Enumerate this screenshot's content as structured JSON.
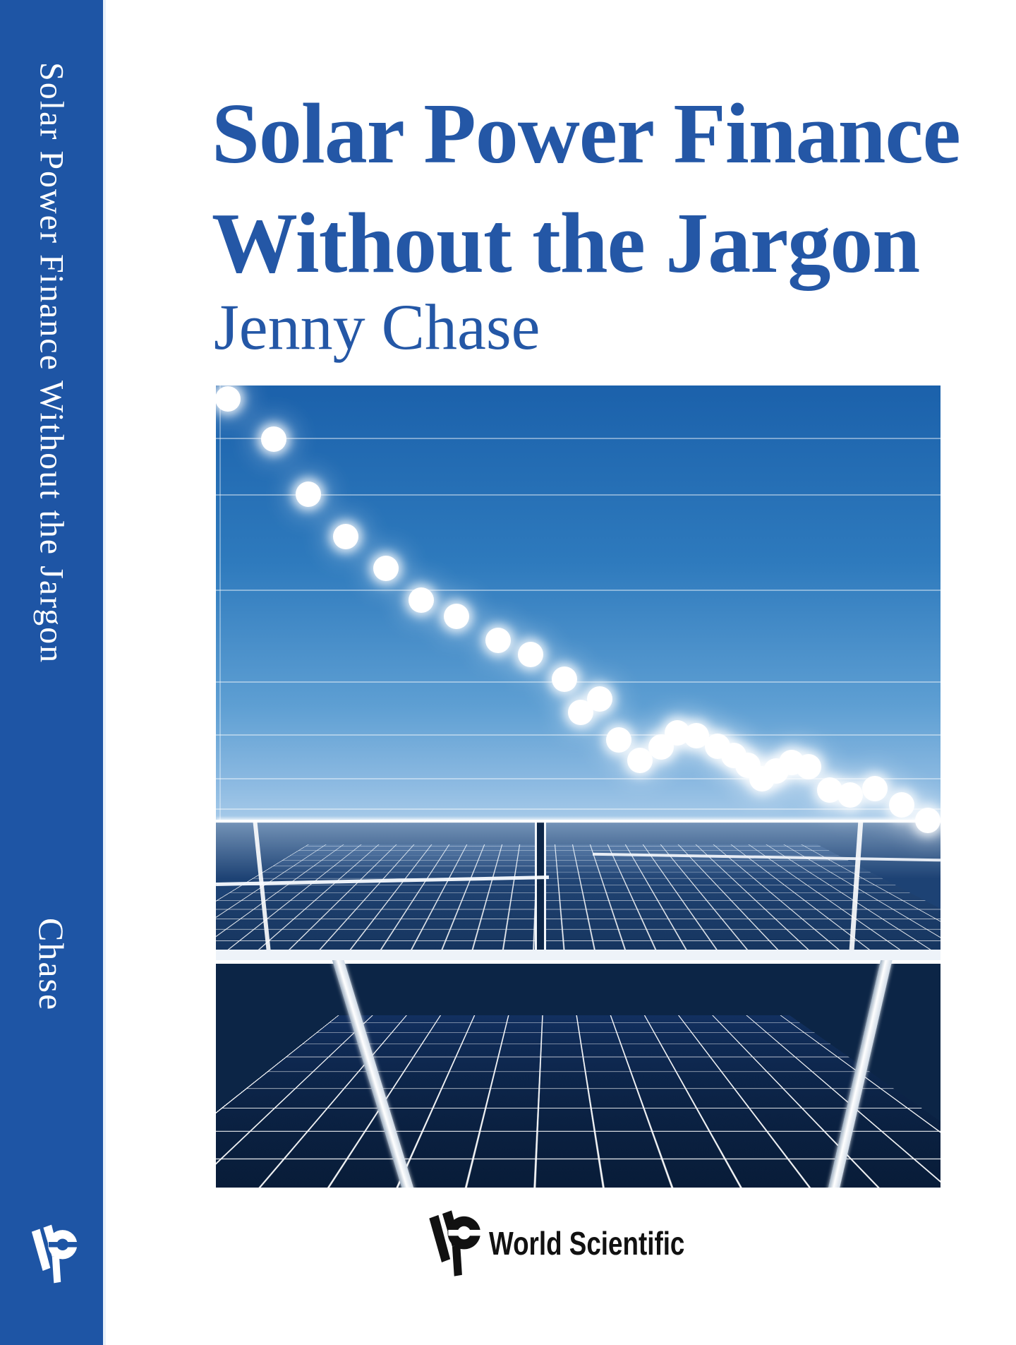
{
  "cover": {
    "title_line1": "Solar Power Finance",
    "title_line2": "Without the Jargon",
    "author": "Jenny Chase"
  },
  "spine": {
    "title": "Solar Power Finance Without the Jargon",
    "author": "Chase",
    "logo_icon": "world-scientific-colophon-icon"
  },
  "publisher": {
    "name": "World Scientific",
    "logo_icon": "world-scientific-colophon-icon"
  },
  "colors": {
    "spine_blue": "#1e55a5",
    "title_blue": "#2457a6",
    "sky_top": "#1b61ab",
    "sky_horizon": "#abcdea",
    "panel_mid_blue": "#1d4274",
    "panel_dark_blue": "#0c2546",
    "dot_white": "#ffffff"
  },
  "chart_data": {
    "type": "scatter",
    "title": "",
    "xlabel": "",
    "ylabel": "",
    "description": "Decorative declining curve of glowing white dots over a solar-panel photograph (evokes falling solar module prices); faint horizontal gridlines, no tick labels visible",
    "gridlines": true,
    "legend": false,
    "points_pct": [
      [
        1.7,
        1.7
      ],
      [
        8.0,
        6.7
      ],
      [
        12.8,
        13.6
      ],
      [
        17.9,
        18.8
      ],
      [
        23.5,
        22.8
      ],
      [
        28.3,
        26.8
      ],
      [
        33.2,
        28.8
      ],
      [
        38.9,
        31.8
      ],
      [
        43.4,
        33.5
      ],
      [
        48.1,
        36.6
      ],
      [
        50.3,
        40.8
      ],
      [
        53.0,
        39.1
      ],
      [
        55.6,
        44.2
      ],
      [
        58.5,
        46.7
      ],
      [
        61.4,
        45.1
      ],
      [
        63.7,
        43.3
      ],
      [
        66.3,
        43.7
      ],
      [
        69.2,
        45.0
      ],
      [
        71.5,
        46.1
      ],
      [
        73.4,
        47.4
      ],
      [
        75.4,
        49.0
      ],
      [
        77.3,
        48.1
      ],
      [
        79.5,
        47.0
      ],
      [
        81.8,
        47.5
      ],
      [
        84.7,
        50.4
      ],
      [
        87.5,
        51.1
      ],
      [
        90.9,
        50.3
      ],
      [
        94.6,
        52.3
      ],
      [
        98.2,
        54.2
      ]
    ],
    "gridlines_y_pct": [
      6.5,
      13.6,
      25.4,
      36.9,
      43.5,
      48.9,
      52.7
    ]
  }
}
